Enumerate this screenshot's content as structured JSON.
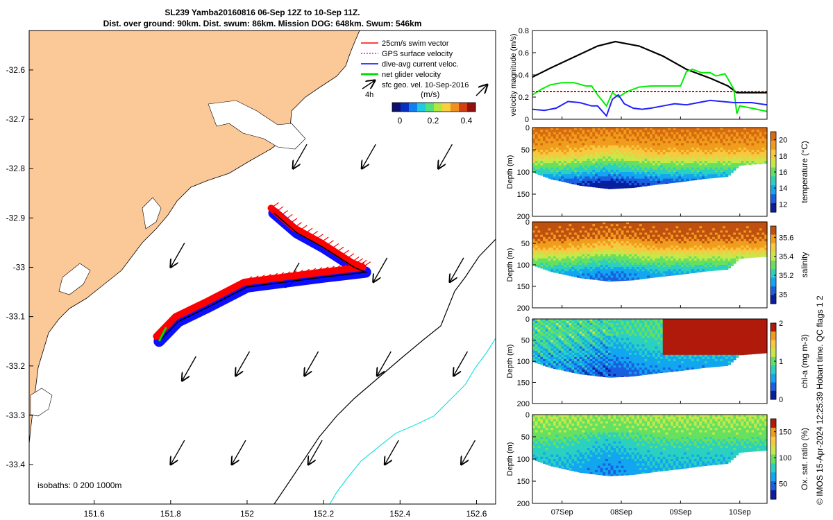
{
  "title": {
    "line1": "SL239 Yamba20160816 06-Sep 12Z to 10-Sep 11Z.",
    "line2": "Dist. over ground: 90km. Dist. swum: 86km. Mission DOG: 648km. Swum: 546km"
  },
  "footer_stamp": "© IMOS 15-Apr-2024 12:25:39 Hobart time. QC flags 1  2",
  "colors": {
    "land": "#fbc898",
    "swim_vector": "#ff0000",
    "gps_velocity": "#ff00ff",
    "current": "#0000ff",
    "net_velocity": "#00dd00",
    "track": "#000000",
    "isobath_deep": "#20e0e0"
  },
  "chart_data": [
    {
      "type": "scatter",
      "subtype": "map",
      "x_ticks": [
        "151.6",
        "151.8",
        "152",
        "152.2",
        "152.4",
        "152.6"
      ],
      "y_ticks": [
        "-32.6",
        "-32.7",
        "-32.8",
        "-32.9",
        "-33",
        "-33.1",
        "-33.2",
        "-33.3",
        "-33.4"
      ],
      "xlim": [
        151.43,
        152.65
      ],
      "ylim": [
        -33.48,
        -32.52
      ],
      "legend": {
        "placement": "top-right",
        "items": [
          {
            "label": "25cm/s swim vector",
            "color": "#ff0000"
          },
          {
            "label": "GPS surface velocity",
            "color": "#ff00ff"
          },
          {
            "label": "dive-avg current veloc.",
            "color": "#0000ff"
          },
          {
            "label": "net glider velocity",
            "color": "#00dd00"
          },
          {
            "label": "sfc geo. vel. 10-Sep-2016",
            "color": "#000000"
          }
        ],
        "scale_label": "4h"
      },
      "colorbar": {
        "label": "(m/s)",
        "ticks": [
          "0",
          "0.2",
          "0.4"
        ],
        "range": [
          0,
          0.5
        ]
      },
      "annotation": "isobaths: 0   200  1000m",
      "track": [
        [
          152.07,
          -32.89
        ],
        [
          152.13,
          -32.93
        ],
        [
          152.2,
          -32.96
        ],
        [
          152.28,
          -33.0
        ],
        [
          152.31,
          -33.01
        ],
        [
          152.2,
          -33.02
        ],
        [
          152.1,
          -33.03
        ],
        [
          152.0,
          -33.04
        ],
        [
          151.9,
          -33.08
        ],
        [
          151.82,
          -33.11
        ],
        [
          151.77,
          -33.15
        ]
      ],
      "geo_vectors": [
        [
          151.8,
          -33.0
        ],
        [
          151.83,
          -33.23
        ],
        [
          151.8,
          -33.4
        ],
        [
          152.12,
          -32.8
        ],
        [
          152.3,
          -32.8
        ],
        [
          152.5,
          -32.8
        ],
        [
          152.1,
          -33.04
        ],
        [
          152.33,
          -33.03
        ],
        [
          152.53,
          -33.03
        ],
        [
          151.97,
          -33.22
        ],
        [
          152.15,
          -33.22
        ],
        [
          152.34,
          -33.22
        ],
        [
          152.54,
          -33.22
        ],
        [
          151.96,
          -33.4
        ],
        [
          152.16,
          -33.4
        ],
        [
          152.36,
          -33.4
        ],
        [
          152.56,
          -33.4
        ]
      ]
    },
    {
      "type": "line",
      "ylabel": "velocity magnitude (m/s)",
      "y_ticks": [
        "0",
        "0.2",
        "0.4",
        "0.6",
        "0.8"
      ],
      "ylim": [
        0,
        0.8
      ],
      "xlim": [
        6.5,
        10.46
      ],
      "series": [
        {
          "color": "#000000",
          "x": [
            6.5,
            6.8,
            7.2,
            7.6,
            7.9,
            8.3,
            8.7,
            9.1,
            9.5,
            9.8,
            9.95,
            10.46
          ],
          "values": [
            0.38,
            0.46,
            0.56,
            0.66,
            0.7,
            0.66,
            0.57,
            0.45,
            0.37,
            0.3,
            0.24,
            0.24
          ]
        },
        {
          "color": "#00ee00",
          "x": [
            6.5,
            6.65,
            6.8,
            7.0,
            7.2,
            7.4,
            7.5,
            7.6,
            7.75,
            7.85,
            7.95,
            8.1,
            8.3,
            8.5,
            8.65,
            8.8,
            9.0,
            9.1,
            9.2,
            9.35,
            9.5,
            9.6,
            9.75,
            9.9,
            9.95,
            10.0,
            10.2,
            10.46
          ],
          "values": [
            0.22,
            0.27,
            0.31,
            0.33,
            0.33,
            0.3,
            0.3,
            0.22,
            0.12,
            0.24,
            0.2,
            0.25,
            0.29,
            0.3,
            0.3,
            0.3,
            0.3,
            0.43,
            0.45,
            0.42,
            0.42,
            0.39,
            0.41,
            0.27,
            0.05,
            0.12,
            0.1,
            0.07
          ]
        },
        {
          "color": "#2020ff",
          "x": [
            6.5,
            6.7,
            6.9,
            7.1,
            7.3,
            7.5,
            7.6,
            7.75,
            7.85,
            7.95,
            8.05,
            8.2,
            8.35,
            8.5,
            8.7,
            8.9,
            9.1,
            9.3,
            9.5,
            9.7,
            9.9,
            10.0,
            10.2,
            10.46
          ],
          "values": [
            0.09,
            0.08,
            0.1,
            0.16,
            0.15,
            0.12,
            0.12,
            0.03,
            0.18,
            0.22,
            0.14,
            0.1,
            0.09,
            0.1,
            0.12,
            0.14,
            0.13,
            0.15,
            0.17,
            0.16,
            0.15,
            0.15,
            0.15,
            0.13
          ]
        },
        {
          "color": "#ff0000",
          "style": "dashed",
          "x": [
            6.5,
            10.46
          ],
          "values": [
            0.25,
            0.25
          ]
        }
      ]
    },
    {
      "type": "heatmap",
      "ylabel": "Depth (m)",
      "y_ticks": [
        "0",
        "50",
        "100",
        "150",
        "200"
      ],
      "ylim": [
        200,
        0
      ],
      "colorbar": {
        "label": "temperature (°C)",
        "ticks": [
          "12",
          "14",
          "16",
          "18",
          "20"
        ],
        "range": [
          11,
          21
        ]
      },
      "palette": [
        "#0a1fa0",
        "#1a5fe0",
        "#12a6f0",
        "#2bd0c0",
        "#66e060",
        "#c8e84a",
        "#f8c840",
        "#f09c1c",
        "#d86a10"
      ],
      "bottom_profile": [
        [
          6.5,
          100
        ],
        [
          6.8,
          115
        ],
        [
          7.3,
          130
        ],
        [
          7.8,
          138
        ],
        [
          8.2,
          135
        ],
        [
          8.6,
          128
        ],
        [
          9.0,
          122
        ],
        [
          9.4,
          115
        ],
        [
          9.8,
          110
        ],
        [
          10.0,
          85
        ],
        [
          10.46,
          80
        ]
      ],
      "layers": [
        [
          0,
          0.93
        ],
        [
          40,
          0.85
        ],
        [
          60,
          0.74
        ],
        [
          80,
          0.55
        ],
        [
          100,
          0.4
        ],
        [
          120,
          0.18
        ],
        [
          140,
          0.05
        ]
      ]
    },
    {
      "type": "heatmap",
      "ylabel": "Depth (m)",
      "y_ticks": [
        "0",
        "50",
        "100",
        "150",
        "200"
      ],
      "ylim": [
        200,
        0
      ],
      "colorbar": {
        "label": "salinity",
        "ticks": [
          "35",
          "35.2",
          "35.4",
          "35.6"
        ],
        "range": [
          34.9,
          35.72
        ]
      },
      "palette": [
        "#0a1fa0",
        "#1a5fe0",
        "#12a6f0",
        "#2bd0c0",
        "#66e060",
        "#c8e84a",
        "#f8c840",
        "#f09c1c",
        "#c05010"
      ],
      "bottom_profile": [
        [
          6.5,
          100
        ],
        [
          6.8,
          115
        ],
        [
          7.3,
          130
        ],
        [
          7.8,
          138
        ],
        [
          8.2,
          135
        ],
        [
          8.6,
          128
        ],
        [
          9.0,
          122
        ],
        [
          9.4,
          115
        ],
        [
          9.8,
          110
        ],
        [
          10.0,
          85
        ],
        [
          10.46,
          80
        ]
      ],
      "layers": [
        [
          0,
          0.95
        ],
        [
          40,
          0.9
        ],
        [
          60,
          0.8
        ],
        [
          80,
          0.6
        ],
        [
          100,
          0.45
        ],
        [
          120,
          0.3
        ],
        [
          140,
          0.25
        ]
      ]
    },
    {
      "type": "heatmap",
      "ylabel": "Depth (m)",
      "y_ticks": [
        "0",
        "50",
        "100",
        "150",
        "200"
      ],
      "ylim": [
        200,
        0
      ],
      "colorbar": {
        "label": "chl-a (mg m-3)",
        "ticks": [
          "0",
          "1",
          "2"
        ],
        "range": [
          0,
          2
        ]
      },
      "palette": [
        "#0a1fa0",
        "#1a5fe0",
        "#12a6f0",
        "#2bd0c0",
        "#66e060",
        "#c8e84a",
        "#f8c840",
        "#f09c1c",
        "#b01a0a"
      ],
      "bottom_profile": [
        [
          6.5,
          100
        ],
        [
          6.8,
          115
        ],
        [
          7.3,
          130
        ],
        [
          7.8,
          138
        ],
        [
          8.2,
          135
        ],
        [
          8.6,
          128
        ],
        [
          9.0,
          122
        ],
        [
          9.4,
          115
        ],
        [
          9.8,
          110
        ],
        [
          10.0,
          85
        ],
        [
          10.46,
          80
        ]
      ],
      "layers": [
        [
          0,
          0.45
        ],
        [
          40,
          0.45
        ],
        [
          60,
          0.4
        ],
        [
          80,
          0.35
        ],
        [
          100,
          0.3
        ],
        [
          120,
          0.25
        ],
        [
          140,
          0.2
        ]
      ]
    },
    {
      "type": "heatmap",
      "ylabel": "Depth (m)",
      "y_ticks": [
        "0",
        "50",
        "100",
        "150",
        "200"
      ],
      "ylim": [
        200,
        0
      ],
      "colorbar": {
        "label": "Ox. sat. ratio (%)",
        "ticks": [
          "50",
          "100",
          "150"
        ],
        "range": [
          20,
          175
        ]
      },
      "palette": [
        "#0a1fa0",
        "#1a5fe0",
        "#12a6f0",
        "#2bd0c0",
        "#66e060",
        "#c8e84a",
        "#f8c840",
        "#f09c1c",
        "#b01a0a"
      ],
      "bottom_profile": [
        [
          6.5,
          100
        ],
        [
          6.8,
          115
        ],
        [
          7.3,
          130
        ],
        [
          7.8,
          138
        ],
        [
          8.2,
          135
        ],
        [
          8.6,
          128
        ],
        [
          9.0,
          122
        ],
        [
          9.4,
          115
        ],
        [
          9.8,
          110
        ],
        [
          10.0,
          85
        ],
        [
          10.46,
          80
        ]
      ],
      "layers": [
        [
          0,
          0.58
        ],
        [
          40,
          0.52
        ],
        [
          60,
          0.45
        ],
        [
          80,
          0.4
        ],
        [
          100,
          0.35
        ],
        [
          120,
          0.32
        ],
        [
          140,
          0.3
        ]
      ]
    }
  ],
  "time_axis": {
    "ticks": [
      {
        "label": "07Sep",
        "day": 7
      },
      {
        "label": "08Sep",
        "day": 8
      },
      {
        "label": "09Sep",
        "day": 9
      },
      {
        "label": "10Sep",
        "day": 10
      }
    ]
  }
}
